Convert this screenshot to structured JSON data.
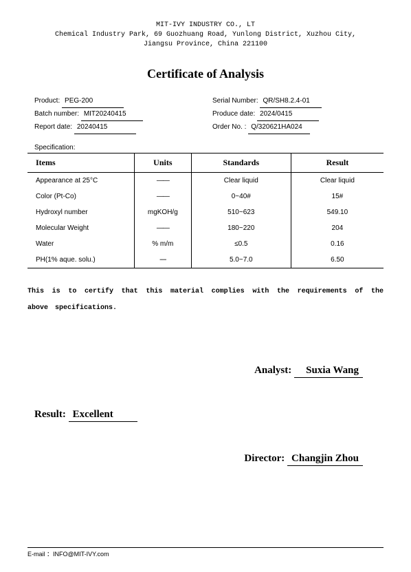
{
  "header": {
    "company": "MIT-IVY INDUSTRY  CO., LT",
    "address1": "Chemical Industry Park, 69 Guozhuang Road, Yunlong District, Xuzhou City,",
    "address2": "Jiangsu Province, China 221100"
  },
  "title": "Certificate of Analysis",
  "info": {
    "product_label": "Product:",
    "product_val": "PEG-200",
    "batch_label": "Batch number:",
    "batch_val": "MIT20240415",
    "reportdate_label": "Report date:",
    "reportdate_val": "20240415",
    "serial_label": "Serial Number:",
    "serial_val": "QR/SH8.2.4-01",
    "proddate_label": "Produce date:",
    "proddate_val": "2024/0415",
    "orderno_label": "Order No. :",
    "orderno_val": "Q/320621HA024"
  },
  "spec_label": "Specification:",
  "columns": [
    "Items",
    "Units",
    "Standards",
    "Result"
  ],
  "rows": [
    [
      "Appearance at 25°C",
      "——",
      "Clear liquid",
      "Clear liquid"
    ],
    [
      "Color (Pt-Co)",
      "——",
      "0~40#",
      "15#"
    ],
    [
      "Hydroxyl number",
      "mgKOH/g",
      "510~623",
      "549.10"
    ],
    [
      "Molecular Weight",
      "——",
      "180~220",
      "204"
    ],
    [
      "Water",
      "% m/m",
      "≤0.5",
      "0.16"
    ],
    [
      "PH(1% aque. solu.)",
      "----",
      "5.0~7.0",
      "6.50"
    ]
  ],
  "certify": "This is to certify that this material complies with the requirements of the above specifications.",
  "sig": {
    "analyst_label": "Analyst:",
    "analyst_val": "Suxia Wang",
    "result_label": "Result:",
    "result_val": "Excellent",
    "director_label": "Director:",
    "director_val": "Changjin Zhou"
  },
  "footer": "E-mail ：INFO@MIT-IVY.com"
}
